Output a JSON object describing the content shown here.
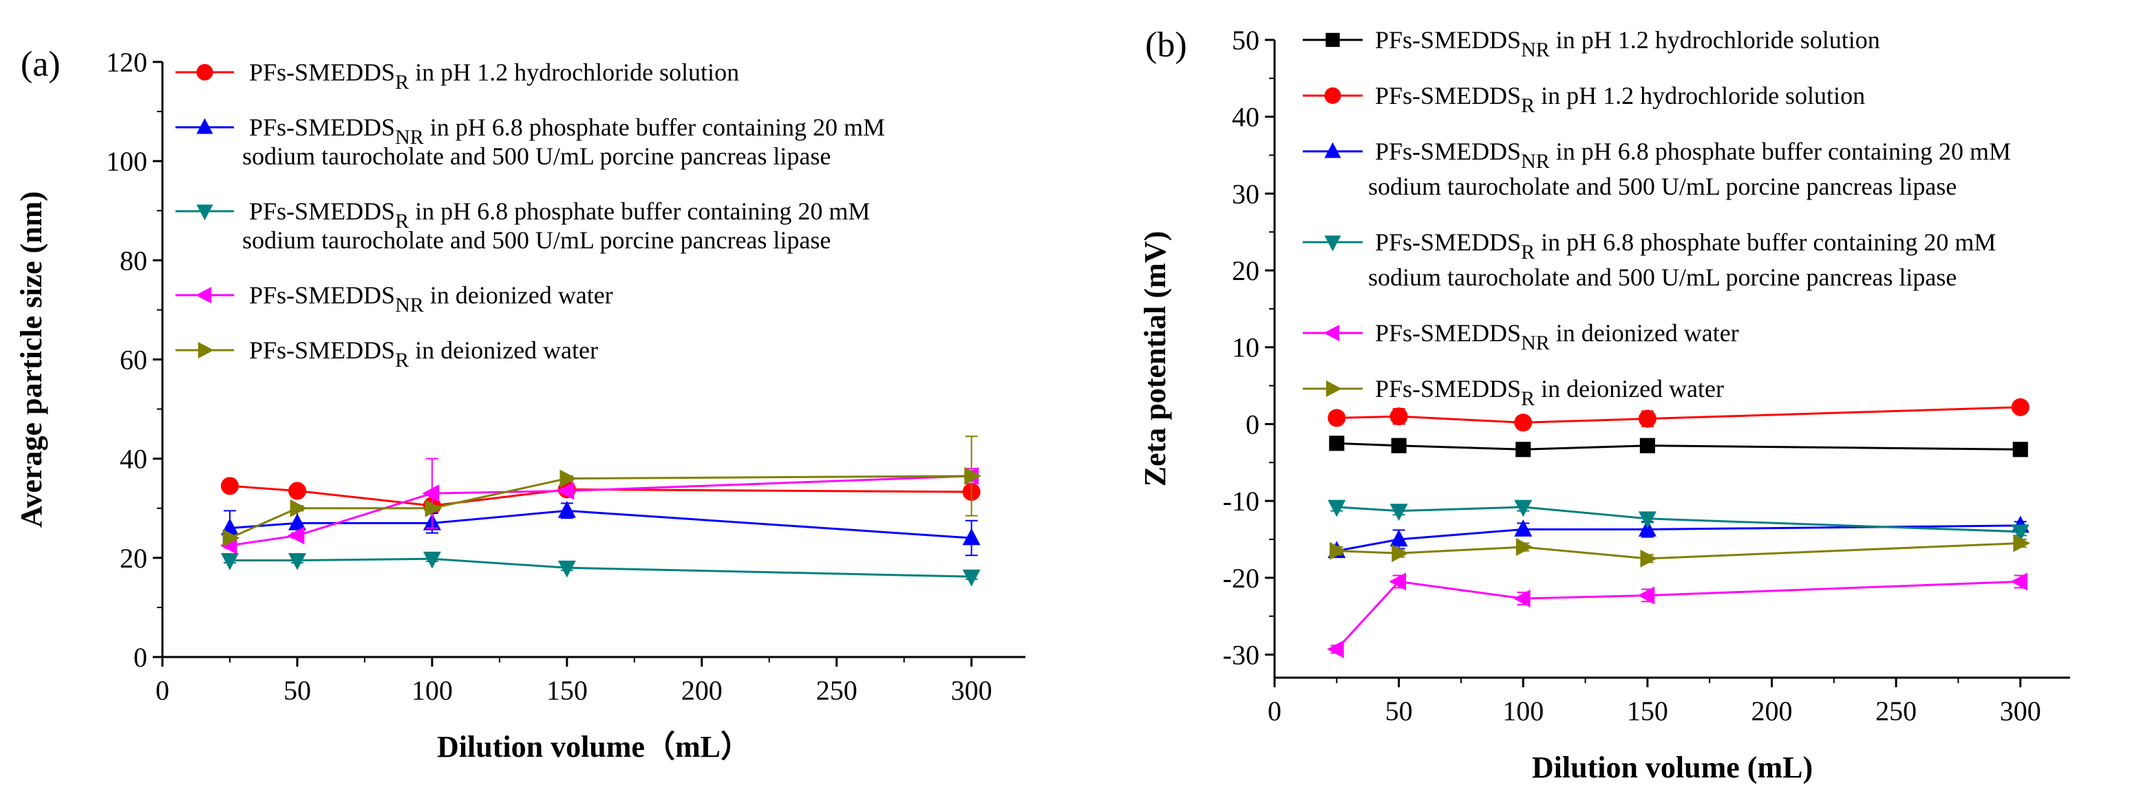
{
  "chart_data": [
    {
      "type": "line",
      "panel_label": "(a)",
      "xlabel": "Dilution volume（mL）",
      "ylabel": "Average particle size (nm)",
      "xlim": [
        0,
        320
      ],
      "ylim": [
        0,
        120
      ],
      "x_ticks": [
        0,
        50,
        100,
        150,
        200,
        250,
        300
      ],
      "y_ticks": [
        0,
        20,
        40,
        60,
        80,
        100,
        120
      ],
      "x": [
        25,
        50,
        100,
        150,
        300
      ],
      "legend_position": "top-right",
      "series": [
        {
          "name": "PFs-SMEDDS",
          "subscript": "R",
          "condition": "in pH 1.2 hydrochloride solution",
          "condition_cont": "",
          "marker": "circle",
          "color": "#ff0000",
          "values": [
            34.5,
            33.5,
            30.5,
            33.8,
            33.3
          ],
          "errors": [
            0.5,
            0.5,
            0.5,
            0.5,
            0.8
          ]
        },
        {
          "name": "PFs-SMEDDS",
          "subscript": "NR",
          "condition": "in pH 6.8 phosphate buffer containing 20 mM",
          "condition_cont": "sodium taurocholate and 500 U/mL porcine pancreas lipase",
          "marker": "triangle-up",
          "color": "#0000ff",
          "values": [
            26.0,
            27.0,
            27.0,
            29.5,
            24.0
          ],
          "errors": [
            3.5,
            2.5,
            2.0,
            1.5,
            3.5
          ]
        },
        {
          "name": "PFs-SMEDDS",
          "subscript": "R",
          "condition": "in pH 6.8 phosphate buffer containing 20 mM",
          "condition_cont": "sodium taurocholate and 500 U/mL porcine pancreas lipase",
          "marker": "triangle-down",
          "color": "#008080",
          "values": [
            19.5,
            19.5,
            19.8,
            18.0,
            16.2
          ],
          "errors": [
            0.5,
            0.5,
            0.5,
            0.5,
            0.5
          ]
        },
        {
          "name": "PFs-SMEDDS",
          "subscript": "NR",
          "condition": "in deionized water",
          "condition_cont": "",
          "marker": "triangle-left",
          "color": "#ff00ff",
          "values": [
            22.5,
            24.5,
            33.0,
            33.5,
            36.5
          ],
          "errors": [
            0.5,
            0.5,
            7.0,
            0.5,
            1.5
          ]
        },
        {
          "name": "PFs-SMEDDS",
          "subscript": "R",
          "condition": "in deionized water",
          "condition_cont": "",
          "marker": "triangle-right",
          "color": "#808000",
          "values": [
            24.0,
            30.0,
            30.0,
            36.0,
            36.5
          ],
          "errors": [
            0.5,
            0.5,
            0.5,
            0.5,
            8.0
          ]
        }
      ]
    },
    {
      "type": "line",
      "panel_label": "(b)",
      "xlabel": "Dilution volume (mL)",
      "ylabel": "Zeta potential (mV)",
      "xlim": [
        0,
        320
      ],
      "ylim": [
        -33,
        50
      ],
      "x_ticks": [
        0,
        50,
        100,
        150,
        200,
        250,
        300
      ],
      "y_ticks": [
        -30,
        -20,
        -10,
        0,
        10,
        20,
        30,
        40,
        50
      ],
      "x": [
        25,
        50,
        100,
        150,
        300
      ],
      "legend_position": "top-right",
      "series": [
        {
          "name": "PFs-SMEDDS",
          "subscript": "NR",
          "condition": "in pH 1.2 hydrochloride solution",
          "condition_cont": "",
          "marker": "square",
          "color": "#000000",
          "values": [
            -2.5,
            -2.8,
            -3.3,
            -2.8,
            -3.3
          ],
          "errors": [
            0.3,
            0.3,
            0.3,
            0.3,
            0.3
          ]
        },
        {
          "name": "PFs-SMEDDS",
          "subscript": "R",
          "condition": "in pH 1.2 hydrochloride solution",
          "condition_cont": "",
          "marker": "circle",
          "color": "#ff0000",
          "values": [
            0.8,
            1.0,
            0.2,
            0.7,
            2.2
          ],
          "errors": [
            0.5,
            1.0,
            0.8,
            1.0,
            0.5
          ]
        },
        {
          "name": "PFs-SMEDDS",
          "subscript": "NR",
          "condition": "in pH 6.8 phosphate buffer containing 20 mM",
          "condition_cont": "sodium taurocholate and 500 U/mL porcine pancreas lipase",
          "marker": "triangle-up",
          "color": "#0000ff",
          "values": [
            -16.5,
            -15.0,
            -13.7,
            -13.7,
            -13.2
          ],
          "errors": [
            0.5,
            1.2,
            0.8,
            1.0,
            0.5
          ]
        },
        {
          "name": "PFs-SMEDDS",
          "subscript": "R",
          "condition": "in pH 6.8 phosphate buffer containing 20 mM",
          "condition_cont": "sodium taurocholate and 500 U/mL porcine pancreas lipase",
          "marker": "triangle-down",
          "color": "#008080",
          "values": [
            -10.8,
            -11.3,
            -10.8,
            -12.3,
            -14.0
          ],
          "errors": [
            0.5,
            0.5,
            0.5,
            0.5,
            0.5
          ]
        },
        {
          "name": "PFs-SMEDDS",
          "subscript": "NR",
          "condition": "in deionized water",
          "condition_cont": "",
          "marker": "triangle-left",
          "color": "#ff00ff",
          "values": [
            -29.3,
            -20.5,
            -22.7,
            -22.3,
            -20.5
          ],
          "errors": [
            0.5,
            0.8,
            0.8,
            0.8,
            0.8
          ]
        },
        {
          "name": "PFs-SMEDDS",
          "subscript": "R",
          "condition": "in deionized water",
          "condition_cont": "",
          "marker": "triangle-right",
          "color": "#808000",
          "values": [
            -16.5,
            -16.8,
            -16.0,
            -17.5,
            -15.5
          ],
          "errors": [
            0.5,
            0.5,
            0.5,
            0.5,
            0.5
          ]
        }
      ]
    }
  ]
}
